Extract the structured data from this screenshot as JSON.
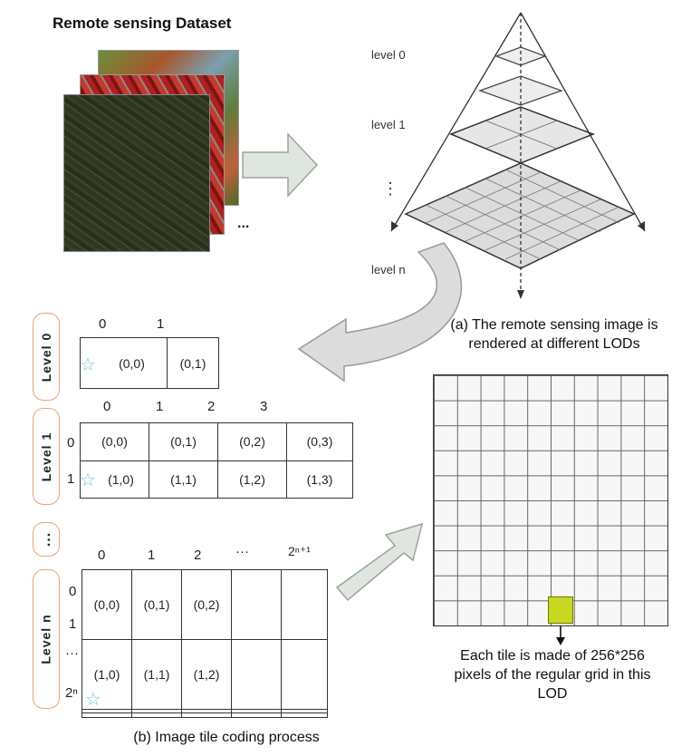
{
  "title": "Remote sensing Dataset",
  "dataset_ellipsis": "...",
  "pyramid": {
    "levels": [
      {
        "label": "level 0"
      },
      {
        "label": "level 1"
      },
      {
        "label": "⋮"
      },
      {
        "label": "level n"
      }
    ]
  },
  "caption_a": {
    "line1": "(a) The remote sensing image is",
    "line2": "rendered at different LODs"
  },
  "caption_b": "(b) Image tile coding process",
  "tile_note": {
    "line1": "Each tile is made of 256*256",
    "line2": "pixels of the regular grid in this",
    "line3": "LOD"
  },
  "tile_levels": {
    "level0": {
      "label": "Level 0",
      "cols": [
        "0",
        "1"
      ],
      "rows": [
        [
          "(0,0)",
          "(0,1)"
        ]
      ]
    },
    "level1": {
      "label": "Level 1",
      "cols": [
        "0",
        "1",
        "2",
        "3"
      ],
      "row_labels": [
        "0",
        "1"
      ],
      "rows": [
        [
          "(0,0)",
          "(0,1)",
          "(0,2)",
          "(0,3)"
        ],
        [
          "(1,0)",
          "(1,1)",
          "(1,2)",
          "(1,3)"
        ]
      ]
    },
    "ellipsis": "...",
    "leveln": {
      "label": "Level n",
      "cols": [
        "0",
        "1",
        "2",
        "···",
        "2ⁿ⁺¹"
      ],
      "row_labels": [
        "0",
        "1",
        "···",
        "2ⁿ"
      ],
      "rows": [
        [
          "(0,0)",
          "(0,1)",
          "(0,2)",
          "",
          ""
        ],
        [
          "(1,0)",
          "(1,1)",
          "(1,2)",
          "",
          ""
        ],
        [
          "",
          "",
          "",
          "",
          ""
        ],
        [
          "",
          "",
          "",
          "",
          ""
        ]
      ]
    }
  },
  "colors": {
    "tile_highlight": "#c8d820",
    "pill_border": "#f0a070",
    "star": "#6cc4d8"
  }
}
